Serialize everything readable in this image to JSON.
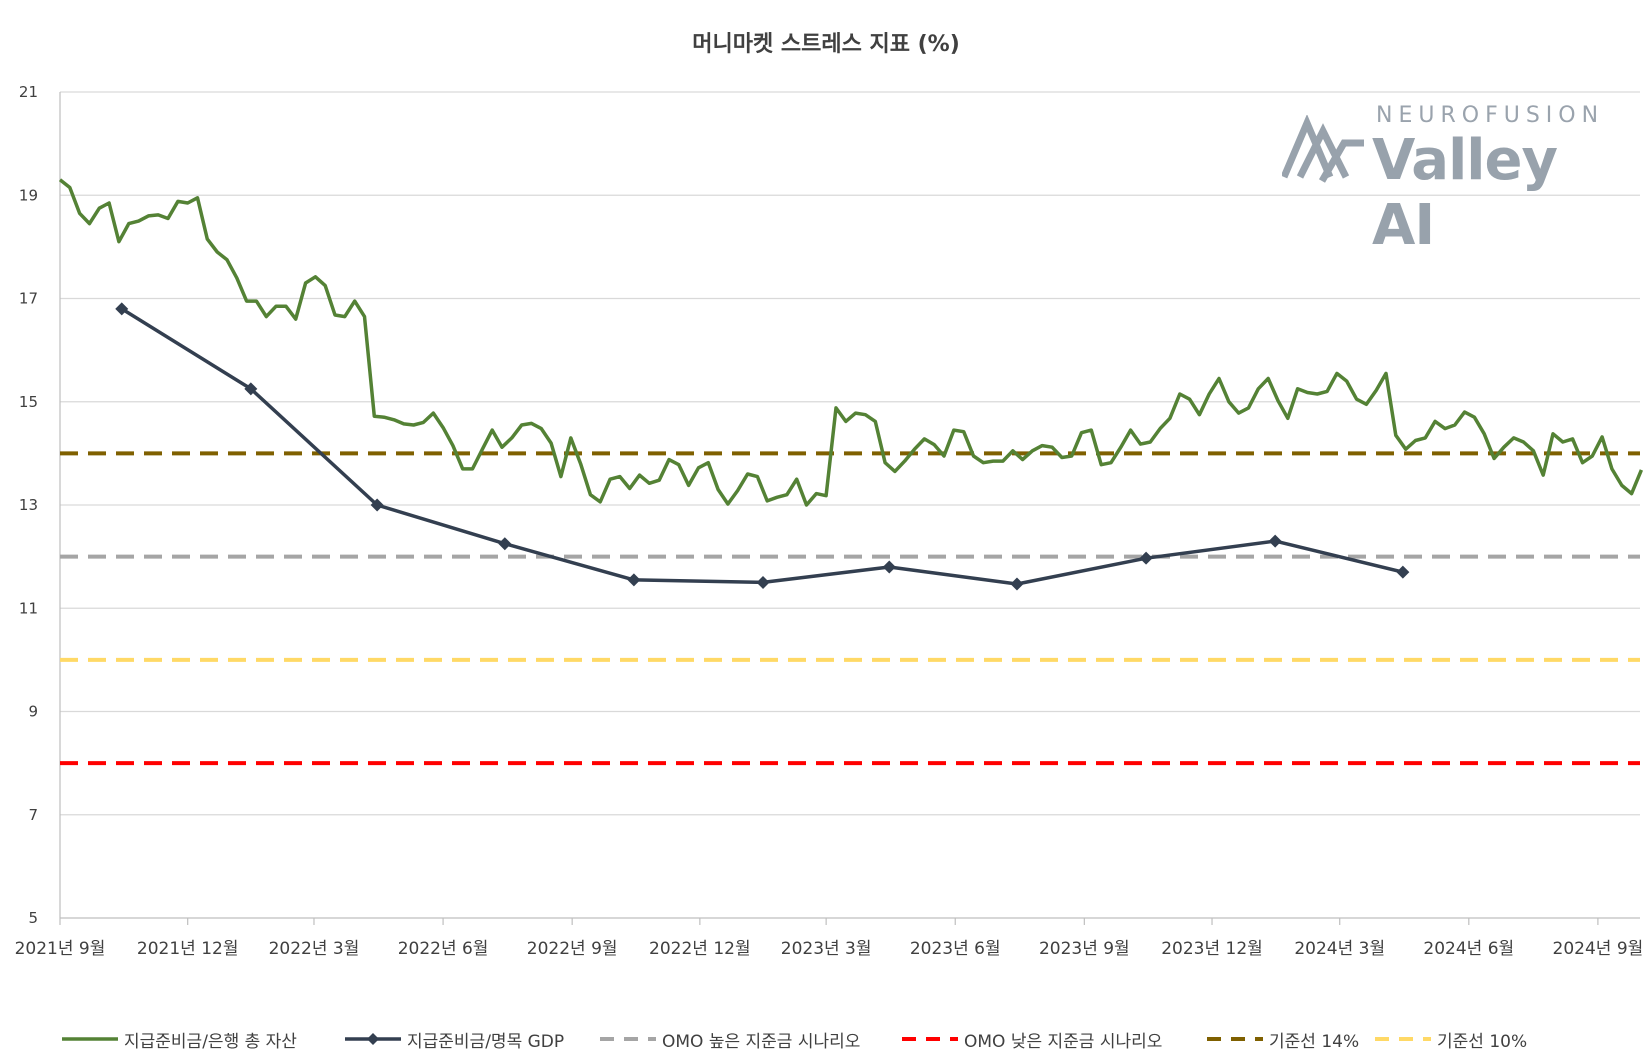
{
  "chart_data": {
    "type": "line",
    "title": "머니마켓 스트레스 지표 (%)",
    "xlabel": "",
    "ylabel": "",
    "ylim": [
      5,
      21
    ],
    "y_ticks": [
      "21",
      "19",
      "17",
      "15",
      "13",
      "11",
      "9",
      "7",
      "5"
    ],
    "x_tick_labels": [
      "2021년 9월",
      "2021년 12월",
      "2022년 3월",
      "2022년 6월",
      "2022년 9월",
      "2022년 12월",
      "2023년 3월",
      "2023년 6월",
      "2023년 9월",
      "2023년 12월",
      "2024년 3월",
      "2024년 6월",
      "2024년 9월"
    ],
    "grid": true,
    "legend_position": "bottom",
    "series": [
      {
        "name": "지급준비금/은행 총 자산",
        "color": "#548235",
        "frequency": "weekly",
        "start": "2021-09-01",
        "values": [
          19.3,
          19.15,
          18.65,
          18.45,
          18.75,
          18.85,
          18.1,
          18.45,
          18.5,
          18.6,
          18.62,
          18.55,
          18.88,
          18.85,
          18.95,
          18.15,
          17.9,
          17.75,
          17.4,
          16.95,
          16.95,
          16.65,
          16.85,
          16.85,
          16.6,
          17.3,
          17.42,
          17.25,
          16.68,
          16.65,
          16.95,
          16.65,
          14.72,
          14.7,
          14.65,
          14.57,
          14.55,
          14.6,
          14.78,
          14.5,
          14.15,
          13.7,
          13.7,
          14.08,
          14.45,
          14.12,
          14.3,
          14.55,
          14.58,
          14.48,
          14.2,
          13.55,
          14.3,
          13.8,
          13.2,
          13.06,
          13.5,
          13.55,
          13.32,
          13.58,
          13.42,
          13.48,
          13.88,
          13.78,
          13.38,
          13.72,
          13.82,
          13.3,
          13.02,
          13.28,
          13.6,
          13.55,
          13.08,
          13.15,
          13.2,
          13.5,
          13.0,
          13.22,
          13.18,
          14.88,
          14.62,
          14.78,
          14.75,
          14.62,
          13.82,
          13.65,
          13.85,
          14.08,
          14.28,
          14.17,
          13.95,
          14.45,
          14.42,
          13.95,
          13.82,
          13.85,
          13.85,
          14.05,
          13.88,
          14.05,
          14.15,
          14.12,
          13.92,
          13.95,
          14.4,
          14.45,
          13.78,
          13.82,
          14.12,
          14.45,
          14.18,
          14.22,
          14.48,
          14.68,
          15.15,
          15.05,
          14.75,
          15.15,
          15.45,
          15.0,
          14.78,
          14.88,
          15.25,
          15.45,
          15.02,
          14.68,
          15.25,
          15.18,
          15.15,
          15.2,
          15.55,
          15.4,
          15.05,
          14.95,
          15.22,
          15.55,
          14.35,
          14.08,
          14.25,
          14.3,
          14.62,
          14.48,
          14.55,
          14.8,
          14.7,
          14.38,
          13.9,
          14.12,
          14.3,
          14.22,
          14.05,
          13.58,
          14.38,
          14.22,
          14.28,
          13.82,
          13.95,
          14.32,
          13.7,
          13.38,
          13.22,
          13.68
        ]
      },
      {
        "name": "지급준비금/명목 GDP",
        "color": "#333f50",
        "frequency": "quarterly",
        "points": [
          {
            "x": "2021-10",
            "y": 16.8
          },
          {
            "x": "2022-01",
            "y": 15.25
          },
          {
            "x": "2022-04",
            "y": 13.0
          },
          {
            "x": "2022-07",
            "y": 12.25
          },
          {
            "x": "2022-10",
            "y": 11.55
          },
          {
            "x": "2023-01",
            "y": 11.5
          },
          {
            "x": "2023-04",
            "y": 11.8
          },
          {
            "x": "2023-07",
            "y": 11.47
          },
          {
            "x": "2023-10",
            "y": 11.97
          },
          {
            "x": "2024-01",
            "y": 12.3
          },
          {
            "x": "2024-04",
            "y": 11.7
          }
        ]
      }
    ],
    "reference_lines": [
      {
        "name": "OMO 높은 지준금 시나리오",
        "y": 12,
        "color": "#a5a5a5"
      },
      {
        "name": "OMO 낮은 지준금 시나리오",
        "y": 8,
        "color": "#ff0000"
      },
      {
        "name": "기준선 14%",
        "y": 14,
        "color": "#7f6000"
      },
      {
        "name": "기준선 10%",
        "y": 10,
        "color": "#ffd966"
      }
    ]
  },
  "watermark": {
    "line1": "NEUROFUSION",
    "line2": "Valley AI"
  }
}
